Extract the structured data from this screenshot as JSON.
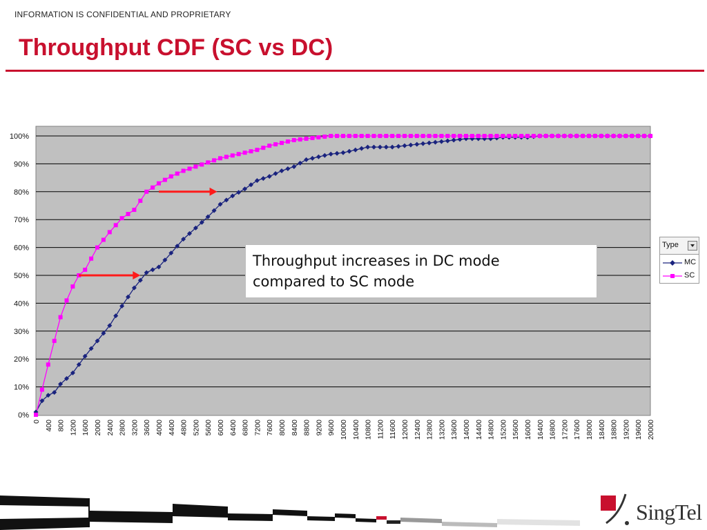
{
  "header": {
    "confidential": "INFORMATION IS CONFIDENTIAL AND PROPRIETARY",
    "title": "Throughput CDF (SC vs DC)"
  },
  "callout": {
    "line1": "Throughput increases in DC mode",
    "line2": "compared to SC mode"
  },
  "legend": {
    "title": "Type",
    "items": [
      "MC",
      "SC"
    ]
  },
  "logo": {
    "text": "SingTel"
  },
  "colors": {
    "title_red": "#c8102e",
    "mc_series": "#1a237e",
    "sc_series": "#ff00ff",
    "plot_background": "#c0c0c0",
    "arrow": "#ff1a1a"
  },
  "chart_data": {
    "type": "line",
    "x_min": 0,
    "x_max": 20000,
    "x_step": 200,
    "x_tick_step": 400,
    "y_ticks": [
      "0%",
      "10%",
      "20%",
      "30%",
      "40%",
      "50%",
      "60%",
      "70%",
      "80%",
      "90%",
      "100%"
    ],
    "ylim": [
      0,
      1
    ],
    "grid": true,
    "legend_position": "right",
    "series": [
      {
        "name": "MC",
        "marker": "diamond",
        "points": [
          [
            0,
            0.01
          ],
          [
            200,
            0.05
          ],
          [
            400,
            0.07
          ],
          [
            600,
            0.08
          ],
          [
            800,
            0.11
          ],
          [
            1000,
            0.13
          ],
          [
            1200,
            0.15
          ],
          [
            1600,
            0.21
          ],
          [
            2000,
            0.265
          ],
          [
            2400,
            0.32
          ],
          [
            2800,
            0.39
          ],
          [
            3200,
            0.455
          ],
          [
            3600,
            0.51
          ],
          [
            4000,
            0.53
          ],
          [
            4400,
            0.58
          ],
          [
            4800,
            0.63
          ],
          [
            5200,
            0.67
          ],
          [
            5600,
            0.71
          ],
          [
            6000,
            0.755
          ],
          [
            6400,
            0.785
          ],
          [
            6800,
            0.81
          ],
          [
            7200,
            0.84
          ],
          [
            7600,
            0.855
          ],
          [
            8000,
            0.875
          ],
          [
            8400,
            0.89
          ],
          [
            8800,
            0.915
          ],
          [
            9200,
            0.925
          ],
          [
            9600,
            0.935
          ],
          [
            10000,
            0.94
          ],
          [
            10400,
            0.95
          ],
          [
            10800,
            0.96
          ],
          [
            11200,
            0.96
          ],
          [
            11600,
            0.96
          ],
          [
            12000,
            0.965
          ],
          [
            12400,
            0.97
          ],
          [
            12800,
            0.975
          ],
          [
            13200,
            0.98
          ],
          [
            13600,
            0.985
          ],
          [
            14000,
            0.99
          ],
          [
            14800,
            0.99
          ],
          [
            15200,
            0.995
          ],
          [
            16000,
            0.995
          ],
          [
            16400,
            1.0
          ],
          [
            20000,
            1.0
          ]
        ]
      },
      {
        "name": "SC",
        "marker": "square",
        "points": [
          [
            0,
            0.0
          ],
          [
            200,
            0.09
          ],
          [
            400,
            0.18
          ],
          [
            600,
            0.265
          ],
          [
            800,
            0.35
          ],
          [
            1000,
            0.41
          ],
          [
            1200,
            0.46
          ],
          [
            1400,
            0.5
          ],
          [
            1600,
            0.52
          ],
          [
            2000,
            0.6
          ],
          [
            2400,
            0.655
          ],
          [
            2800,
            0.705
          ],
          [
            3200,
            0.735
          ],
          [
            3600,
            0.8
          ],
          [
            4000,
            0.83
          ],
          [
            4400,
            0.855
          ],
          [
            4800,
            0.875
          ],
          [
            5200,
            0.89
          ],
          [
            5600,
            0.905
          ],
          [
            6000,
            0.92
          ],
          [
            6400,
            0.93
          ],
          [
            6800,
            0.94
          ],
          [
            7200,
            0.95
          ],
          [
            7600,
            0.965
          ],
          [
            8000,
            0.975
          ],
          [
            8400,
            0.985
          ],
          [
            8800,
            0.99
          ],
          [
            9200,
            0.995
          ],
          [
            9600,
            1.0
          ],
          [
            20000,
            1.0
          ]
        ]
      }
    ],
    "annotations": [
      {
        "type": "arrow",
        "y": 0.5,
        "x_from": 1400,
        "x_to": 3400
      },
      {
        "type": "arrow",
        "y": 0.8,
        "x_from": 4000,
        "x_to": 5900
      }
    ]
  }
}
